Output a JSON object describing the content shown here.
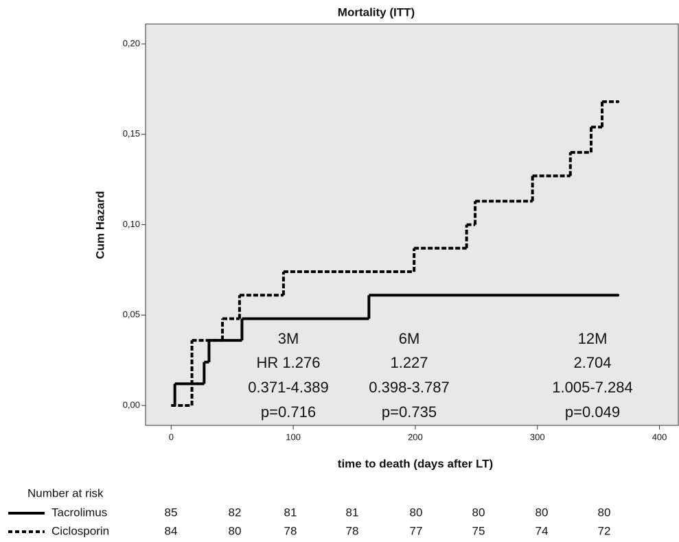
{
  "chart_data": {
    "type": "step",
    "title": "Mortality (ITT)",
    "x_label": "time to death (days after LT)",
    "y_label": "Cum Hazard",
    "xlim": [
      -21,
      416
    ],
    "ylim": [
      -0.011,
      0.211
    ],
    "xticks": [
      0,
      100,
      200,
      300,
      400
    ],
    "yticks": [
      {
        "value": 0,
        "label": "0,00"
      },
      {
        "value": 0.05,
        "label": "0,05"
      },
      {
        "value": 0.1,
        "label": "0,10"
      },
      {
        "value": 0.15,
        "label": "0,15"
      },
      {
        "value": 0.2,
        "label": "0,20"
      }
    ],
    "background": "#e8e8e8",
    "series": [
      {
        "name": "Tacrolimus",
        "color": "#000000",
        "dash": "solid",
        "x": [
          0,
          3,
          27,
          31,
          58,
          162,
          366
        ],
        "values": [
          0,
          0.012,
          0.024,
          0.036,
          0.048,
          0.061,
          0.061
        ],
        "at_risk": [
          85,
          82,
          81,
          81,
          80,
          80,
          80,
          80
        ]
      },
      {
        "name": "Ciclosporin",
        "color": "#000000",
        "dash": "dashed",
        "x": [
          0,
          17,
          42,
          56,
          92,
          199,
          242,
          249,
          296,
          327,
          344,
          353,
          366
        ],
        "values": [
          0,
          0.036,
          0.048,
          0.061,
          0.074,
          0.087,
          0.1,
          0.113,
          0.127,
          0.14,
          0.154,
          0.168,
          0.168
        ],
        "at_risk": [
          84,
          80,
          78,
          78,
          77,
          75,
          74,
          72
        ]
      }
    ],
    "annotations": [
      [
        "3M",
        "HR 1.276",
        "0.371-4.389",
        "p=0.716"
      ],
      [
        "6M",
        "1.227",
        "0.398-3.787",
        "p=0.735"
      ],
      [
        "12M",
        "2.704",
        "1.005-7.284",
        "p=0.049"
      ]
    ],
    "risk_table_title": "Number at risk"
  }
}
